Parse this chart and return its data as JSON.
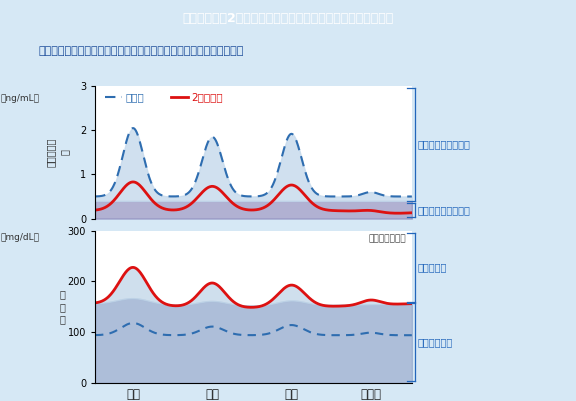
{
  "title": "健常人および2型糖尿病における血糖値とインスリン分泌動態",
  "subtitle": "基礎インスリン分泌量が少なくなると、空腹時血糖値が高くなります",
  "legend_healthy": "健常人",
  "legend_diabetic": "2型糖尿病",
  "image_note": "（イメージ図）",
  "xticklabels": [
    "朝食",
    "昼食",
    "夕食",
    "就寝前"
  ],
  "insulin_unit": "（ng/mL）",
  "insulin_ylabel": "インスリン\n値",
  "insulin_yticks": [
    0,
    1,
    2,
    3
  ],
  "blood_unit": "（mg/dL）",
  "blood_ylabel": "血\n糖\n値",
  "blood_yticks": [
    0,
    100,
    200,
    300
  ],
  "label_basal": "基礎インスリン分泌",
  "label_bolus": "追加インスリン分泌",
  "label_fasting": "空腹時高血糖",
  "label_postprandial": "食後高血糖",
  "bg_color": "#d6e8f5",
  "header_bg": "#7a95b8",
  "plot_bg": "#ffffff",
  "fill_basal_color": "#8888bb",
  "fill_bolus_color": "#c5d9ec",
  "fill_blood_dark": "#99aed0",
  "fill_blood_light": "#c0d5e8",
  "healthy_color": "#2e6db0",
  "diabetic_color": "#dd1111",
  "healthy_lw": 1.5,
  "diabetic_lw": 2.0,
  "title_color": "#ffffff",
  "subtitle_color": "#1a4a99",
  "label_color": "#2266bb",
  "xtick_pos": [
    0.12,
    0.37,
    0.62,
    0.87
  ]
}
